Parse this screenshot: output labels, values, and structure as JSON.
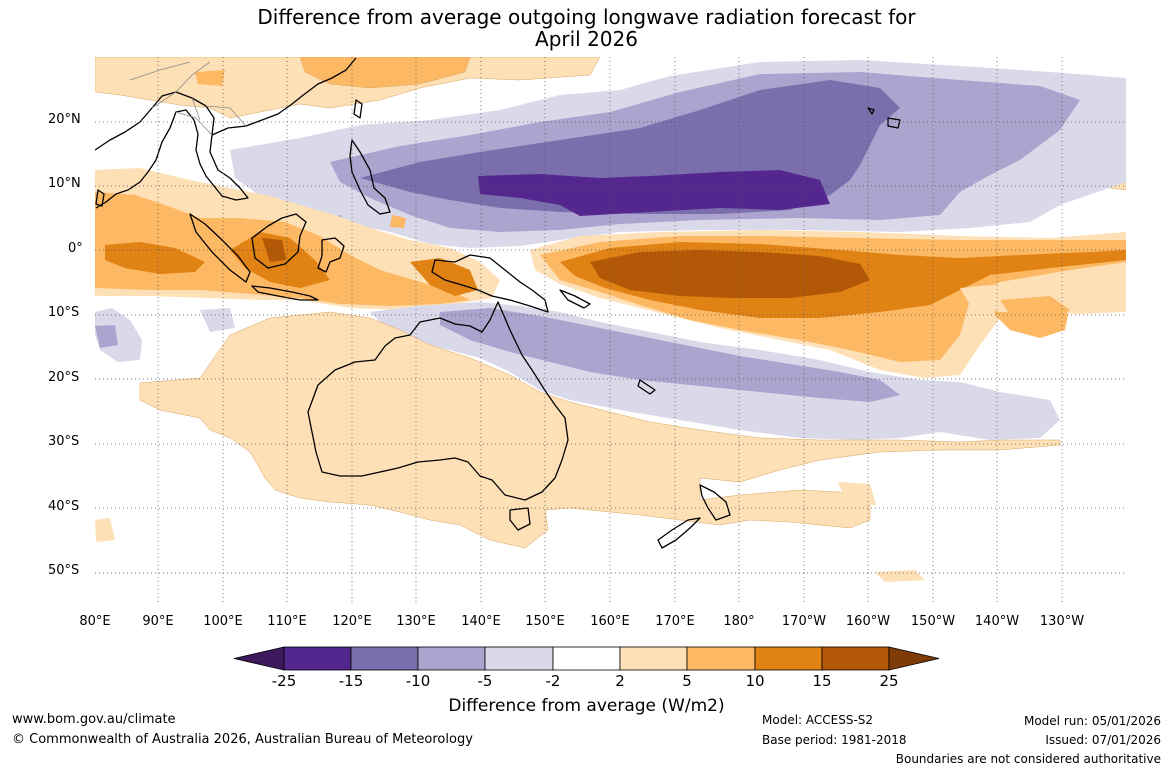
{
  "title": {
    "line1": "Difference from average outgoing longwave radiation forecast for",
    "line2": "April 2026"
  },
  "map": {
    "lat_labels": [
      "20°N",
      "10°N",
      "0°",
      "10°S",
      "20°S",
      "30°S",
      "40°S",
      "50°S"
    ],
    "lon_labels": [
      "80°E",
      "90°E",
      "100°E",
      "110°E",
      "120°E",
      "130°E",
      "140°E",
      "150°E",
      "160°E",
      "170°E",
      "180°",
      "170°W",
      "160°W",
      "150°W",
      "140°W",
      "130°W"
    ]
  },
  "colorbar": {
    "ticks": [
      "-25",
      "-15",
      "-10",
      "-5",
      "-2",
      "2",
      "5",
      "10",
      "15",
      "25"
    ],
    "colors": [
      "#3d1a5e",
      "#54278f",
      "#7a6fac",
      "#aca4cf",
      "#d9d9ea",
      "#ffffff",
      "#fee0b6",
      "#fdb863",
      "#e08214",
      "#b35806",
      "#7f3b08"
    ],
    "title": "Difference from average (W/m2)"
  },
  "footer": {
    "website": "www.bom.gov.au/climate",
    "copyright": "© Commonwealth of Australia 2026, Australian Bureau of Meteorology",
    "model": "Model: ACCESS-S2",
    "base_period": "Base period: 1981-2018",
    "model_run": "Model run: 05/01/2026",
    "issued": "Issued: 07/01/2026",
    "boundaries": "Boundaries are not considered authoritative"
  }
}
